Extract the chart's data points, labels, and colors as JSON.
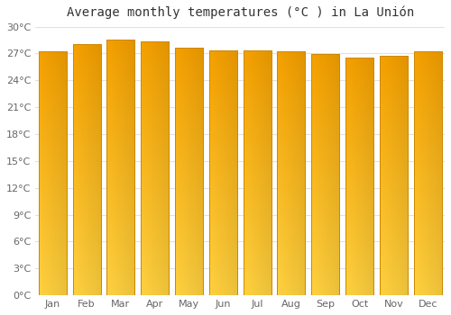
{
  "title": "Average monthly temperatures (°C ) in La Unión",
  "months": [
    "Jan",
    "Feb",
    "Mar",
    "Apr",
    "May",
    "Jun",
    "Jul",
    "Aug",
    "Sep",
    "Oct",
    "Nov",
    "Dec"
  ],
  "values": [
    27.2,
    28.0,
    28.5,
    28.3,
    27.6,
    27.3,
    27.3,
    27.2,
    26.9,
    26.5,
    26.7,
    27.2
  ],
  "bar_color_bottom": "#FFD040",
  "bar_color_top": "#F5A000",
  "bar_color_left": "#FFCC30",
  "bar_color_right": "#E89000",
  "background_color": "#FFFFFF",
  "grid_color": "#E0E0E8",
  "ylim": [
    0,
    30
  ],
  "ytick_step": 3,
  "title_fontsize": 10,
  "tick_fontsize": 8,
  "bar_edge_color": "#CC8800"
}
